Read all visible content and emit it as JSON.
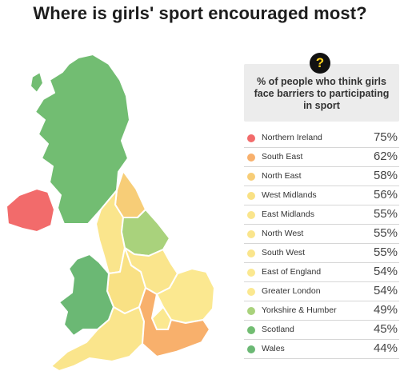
{
  "title": "Where is girls' sport encouraged most?",
  "question_badge": "?",
  "header_text": "% of people who think girls face barriers to participating in sport",
  "chart_data": {
    "type": "table",
    "title": "Where is girls' sport encouraged most?",
    "value_header": "% of people who think girls face barriers to participating in sport",
    "unit": "%",
    "rows": [
      {
        "region": "Northern Ireland",
        "value": 75,
        "color": "#f26b6b"
      },
      {
        "region": "South East",
        "value": 62,
        "color": "#f8b06c"
      },
      {
        "region": "North East",
        "value": 58,
        "color": "#f7cd77"
      },
      {
        "region": "West Midlands",
        "value": 56,
        "color": "#f9e184"
      },
      {
        "region": "East Midlands",
        "value": 55,
        "color": "#fae58c"
      },
      {
        "region": "North West",
        "value": 55,
        "color": "#fae58c"
      },
      {
        "region": "South West",
        "value": 55,
        "color": "#fae58c"
      },
      {
        "region": "East of England",
        "value": 54,
        "color": "#fbe890"
      },
      {
        "region": "Greater London",
        "value": 54,
        "color": "#fbe890"
      },
      {
        "region": "Yorkshire & Humber",
        "value": 49,
        "color": "#a9d27c"
      },
      {
        "region": "Scotland",
        "value": 45,
        "color": "#72bd72"
      },
      {
        "region": "Wales",
        "value": 44,
        "color": "#6bb874"
      }
    ]
  }
}
